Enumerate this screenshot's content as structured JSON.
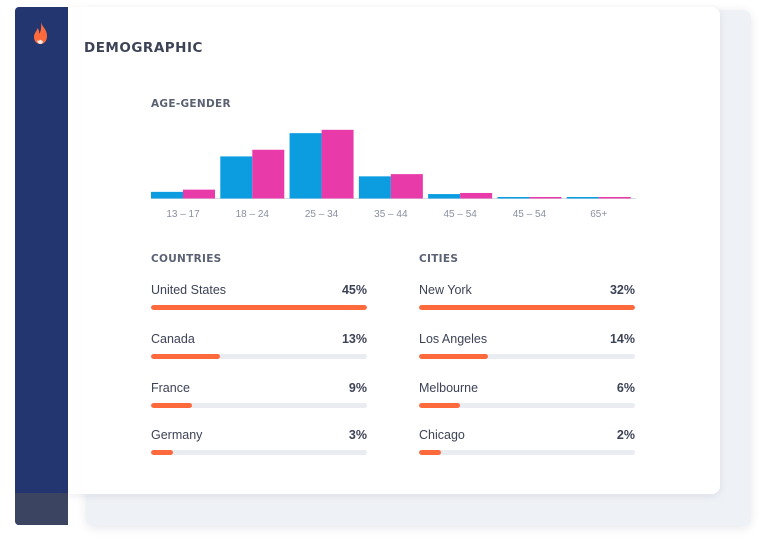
{
  "brand": {
    "logo_icon": "flame-icon",
    "accent": "#ff6a3d",
    "sidebar_color": "#243670"
  },
  "page": {
    "title": "DEMOGRAPHIC"
  },
  "age_gender": {
    "label": "AGE-GENDER",
    "colors": {
      "series_a": "#0b9de0",
      "series_b": "#e83aa8"
    }
  },
  "chart_data": {
    "type": "bar",
    "categories": [
      "13 – 17",
      "18 – 24",
      "25 – 34",
      "35 – 44",
      "45 – 54",
      "45 – 54",
      "65+"
    ],
    "series": [
      {
        "values": [
          6,
          38,
          59,
          20,
          4,
          0.8,
          0.8
        ]
      },
      {
        "values": [
          8,
          44,
          62,
          22,
          5,
          1.2,
          1.2
        ]
      }
    ],
    "ylim": [
      0,
      65
    ],
    "grid": false
  },
  "countries": {
    "label": "COUNTRIES",
    "items": [
      {
        "name": "United States",
        "pct": "45%",
        "fill": 1.0
      },
      {
        "name": "Canada",
        "pct": "13%",
        "fill": 0.32
      },
      {
        "name": "France",
        "pct": "9%",
        "fill": 0.19
      },
      {
        "name": "Germany",
        "pct": "3%",
        "fill": 0.1
      }
    ]
  },
  "cities": {
    "label": "CITIES",
    "items": [
      {
        "name": "New York",
        "pct": "32%",
        "fill": 1.0
      },
      {
        "name": "Los Angeles",
        "pct": "14%",
        "fill": 0.32
      },
      {
        "name": "Melbourne",
        "pct": "6%",
        "fill": 0.19
      },
      {
        "name": "Chicago",
        "pct": "2%",
        "fill": 0.1
      }
    ]
  }
}
